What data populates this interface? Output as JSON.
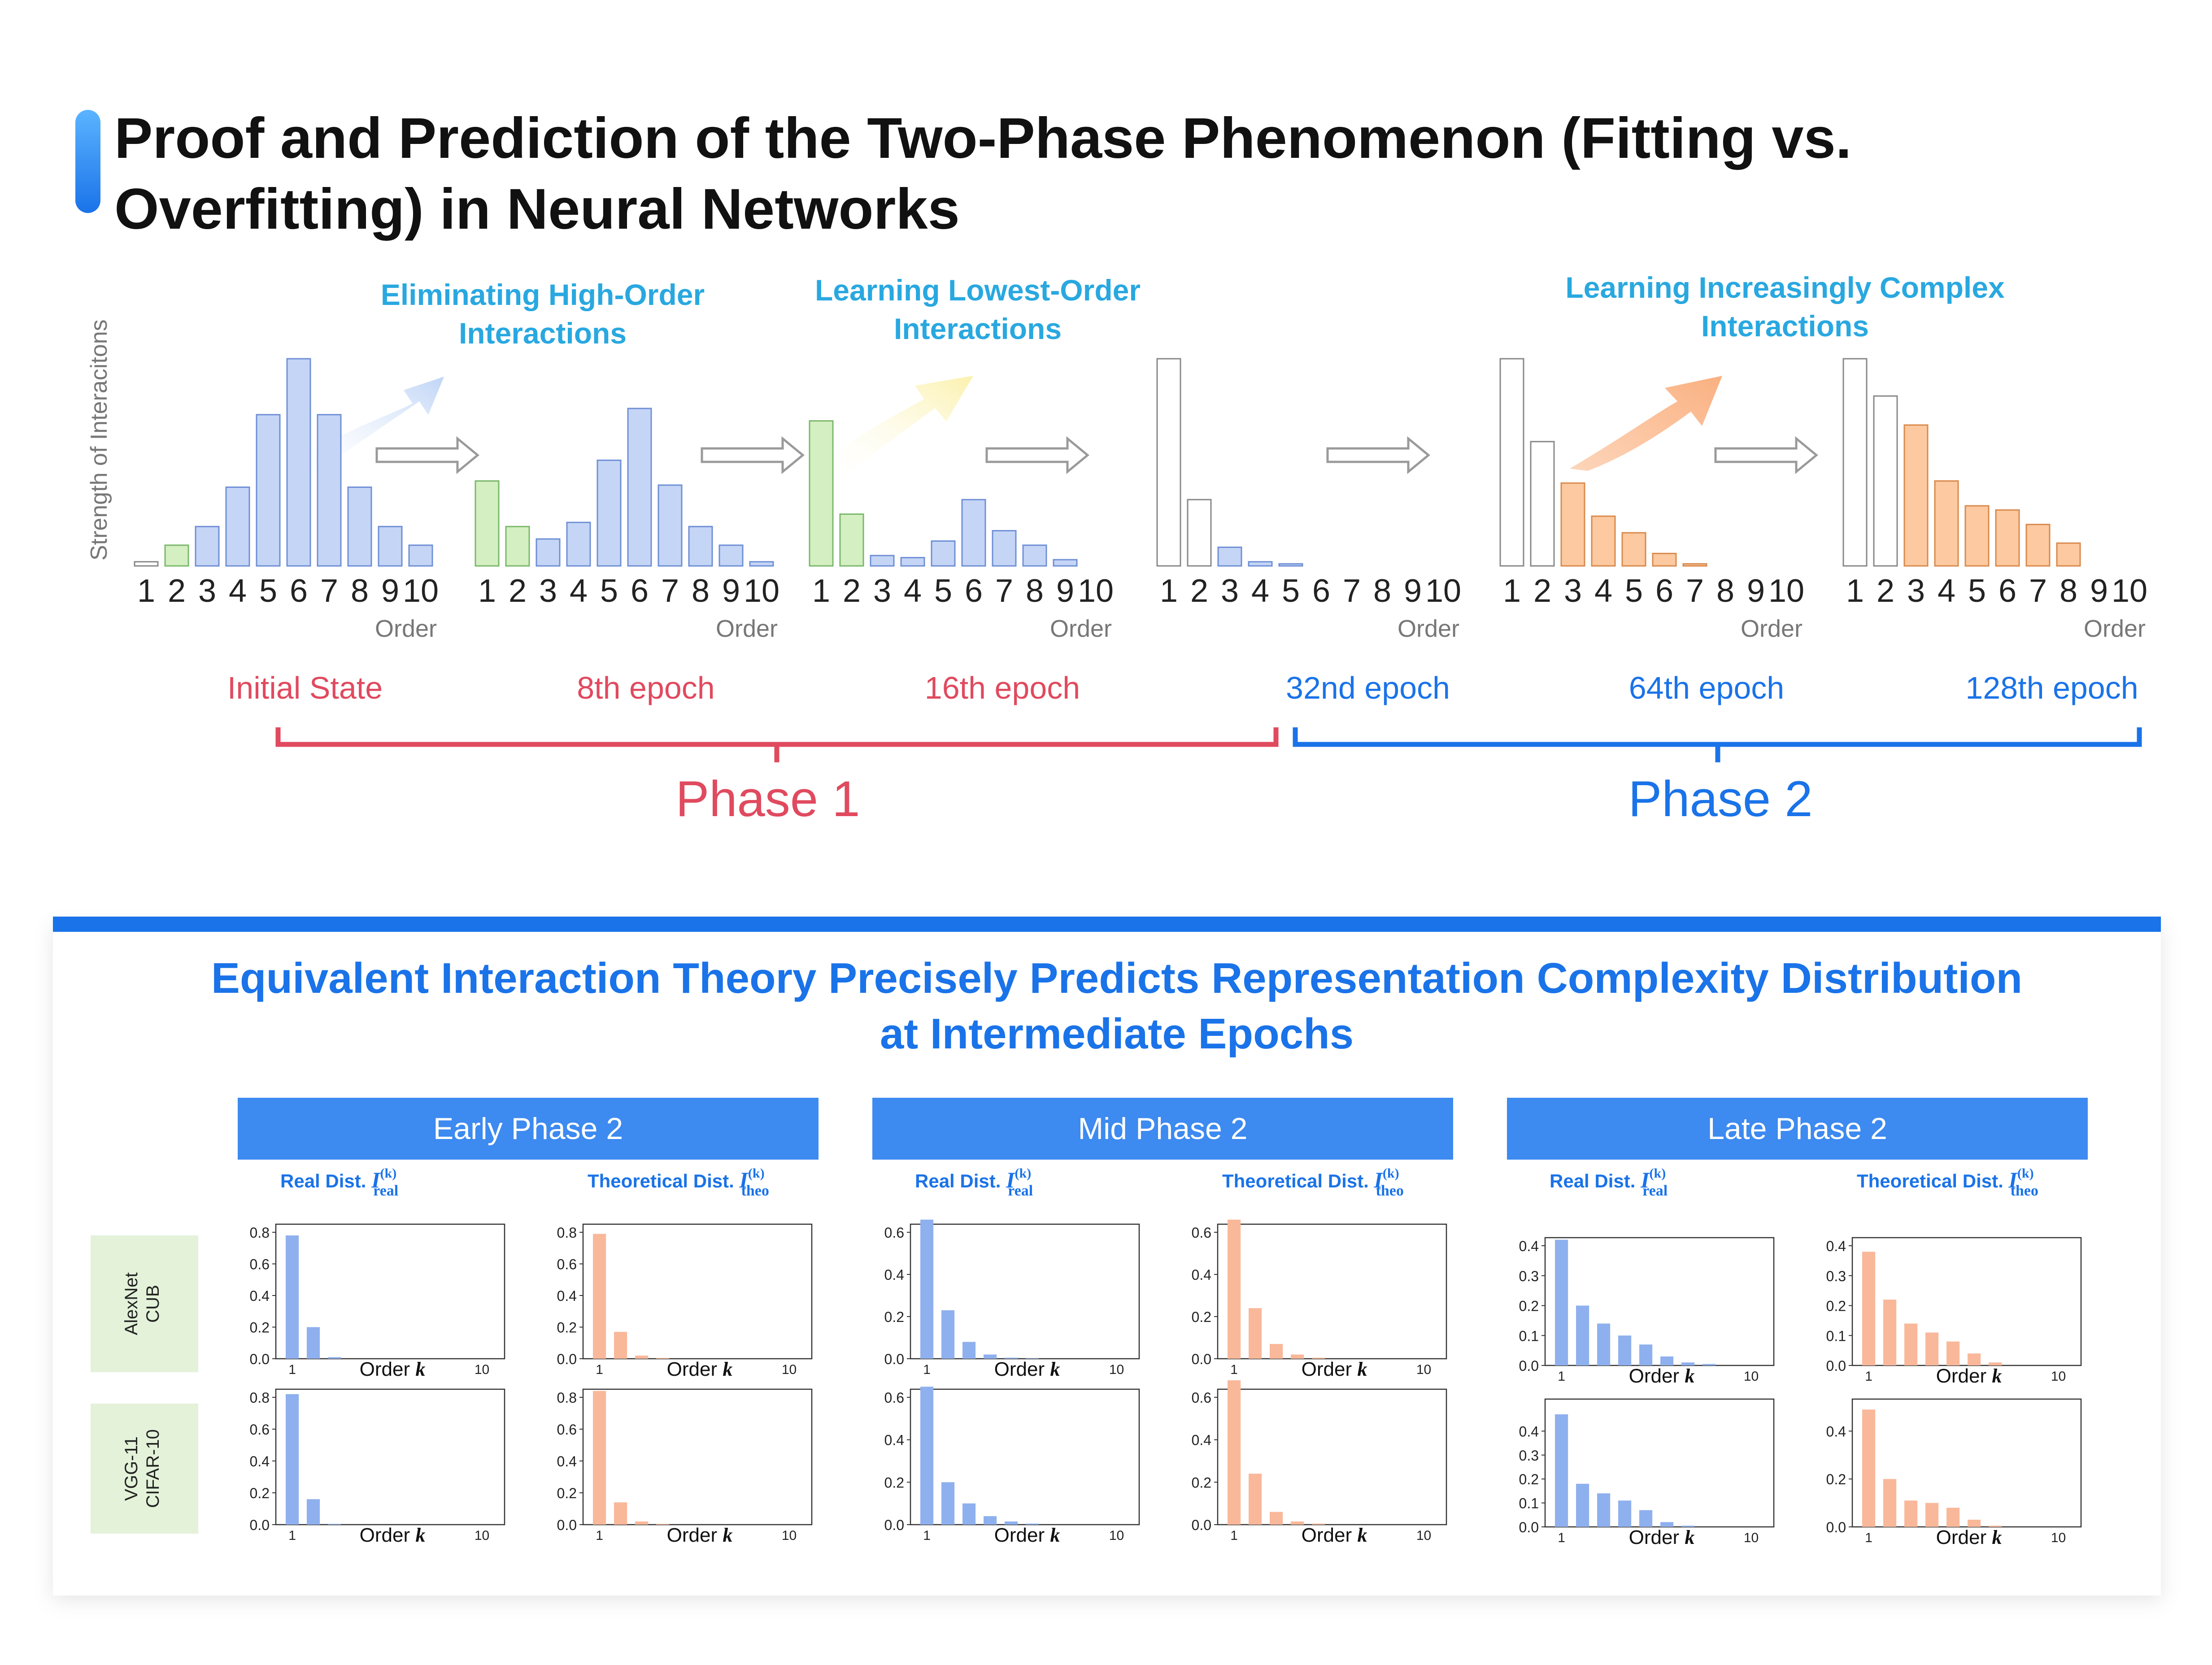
{
  "title": {
    "line1": "Proof and Prediction of the Two-Phase Phenomenon (Fitting vs.",
    "line2": "Overfitting) in Neural Networks"
  },
  "top": {
    "ylabel": "Strength of Interacitons",
    "order_label": "Order",
    "callouts": {
      "eliminating_1": "Eliminating High-Order",
      "eliminating_2": "Interactions",
      "lowest_1": "Learning Lowest-Order",
      "lowest_2": "Interactions",
      "complex_1": "Learning Increasingly Complex",
      "complex_2": "Interactions"
    },
    "phase1_label": "Phase 1",
    "phase2_label": "Phase 2",
    "colors": {
      "phase1": "#e04a5f",
      "phase2": "#1a73e8",
      "callout": "#29a8e0",
      "blue_bar": "#c5d5f5",
      "blue_stroke": "#6f8fd6",
      "green_bar": "#d4efc2",
      "green_stroke": "#7ab86a",
      "orange_bar": "#fcc9a0",
      "orange_stroke": "#d98a4c",
      "white_stroke": "#888888"
    },
    "stages": [
      {
        "label": "Initial State",
        "phase": 1,
        "values": [
          0.02,
          0.1,
          0.19,
          0.38,
          0.73,
          1.0,
          0.73,
          0.38,
          0.19,
          0.1
        ],
        "styles": [
          "w",
          "g",
          "b",
          "b",
          "b",
          "b",
          "b",
          "b",
          "b",
          "b"
        ]
      },
      {
        "label": "8th epoch",
        "phase": 1,
        "values": [
          0.41,
          0.19,
          0.13,
          0.21,
          0.51,
          0.76,
          0.39,
          0.19,
          0.1,
          0.02
        ],
        "styles": [
          "g",
          "g",
          "b",
          "b",
          "b",
          "b",
          "b",
          "b",
          "b",
          "b"
        ]
      },
      {
        "label": "16th epoch",
        "phase": 1,
        "values": [
          0.7,
          0.25,
          0.05,
          0.04,
          0.12,
          0.32,
          0.17,
          0.1,
          0.03,
          0.0
        ],
        "styles": [
          "g",
          "g",
          "b",
          "b",
          "b",
          "b",
          "b",
          "b",
          "b",
          "b"
        ]
      },
      {
        "label": "32nd epoch",
        "phase": 2,
        "values": [
          1.0,
          0.32,
          0.09,
          0.02,
          0.01,
          0,
          0,
          0,
          0,
          0
        ],
        "styles": [
          "w",
          "w",
          "b",
          "b",
          "b",
          "b",
          "b",
          "b",
          "b",
          "b"
        ]
      },
      {
        "label": "64th epoch",
        "phase": 2,
        "values": [
          1.0,
          0.6,
          0.4,
          0.24,
          0.16,
          0.06,
          0.01,
          0,
          0,
          0
        ],
        "styles": [
          "w",
          "w",
          "o",
          "o",
          "o",
          "o",
          "o",
          "o",
          "o",
          "o"
        ]
      },
      {
        "label": "128th epoch",
        "phase": 2,
        "values": [
          1.0,
          0.82,
          0.68,
          0.41,
          0.29,
          0.27,
          0.2,
          0.11,
          0,
          0
        ],
        "styles": [
          "w",
          "w",
          "o",
          "o",
          "o",
          "o",
          "o",
          "o",
          "o",
          "o"
        ]
      }
    ]
  },
  "bottom": {
    "title_line1": "Equivalent Interaction Theory Precisely Predicts Representation Complexity Distribution",
    "title_line2": "at Intermediate Epochs",
    "real_label": "Real Dist. ",
    "theo_label": "Theoretical Dist. ",
    "real_symbol": "I",
    "real_sup": "(k)",
    "real_sub": "real",
    "theo_sup": "(k)",
    "theo_sub": "theo",
    "order_k": "Order ",
    "k": "k",
    "x_start": "1",
    "x_end": "10",
    "rows": [
      {
        "line1": "AlexNet",
        "line2": "CUB"
      },
      {
        "line1": "VGG-11",
        "line2": "CIFAR-10"
      }
    ],
    "columns": [
      {
        "header": "Early Phase 2",
        "charts": [
          {
            "ymax": 0.8,
            "ticks": [
              "0.0",
              "0.2",
              "0.4",
              "0.6",
              "0.8"
            ],
            "real": [
              0.78,
              0.2,
              0.01,
              0,
              0,
              0,
              0,
              0,
              0,
              0
            ],
            "theo": [
              0.79,
              0.17,
              0.02,
              0.005,
              0,
              0,
              0,
              0,
              0,
              0
            ]
          },
          {
            "ymax": 0.8,
            "ticks": [
              "0.0",
              "0.2",
              "0.4",
              "0.6",
              "0.8"
            ],
            "real": [
              0.82,
              0.16,
              0.005,
              0,
              0,
              0,
              0,
              0,
              0,
              0
            ],
            "theo": [
              0.84,
              0.14,
              0.02,
              0.005,
              0,
              0,
              0,
              0,
              0,
              0
            ]
          }
        ]
      },
      {
        "header": "Mid Phase 2",
        "charts": [
          {
            "ymax": 0.6,
            "ticks": [
              "0.0",
              "0.2",
              "0.4",
              "0.6"
            ],
            "real": [
              0.66,
              0.23,
              0.08,
              0.02,
              0.005,
              0.002,
              0,
              0,
              0,
              0
            ],
            "theo": [
              0.66,
              0.24,
              0.07,
              0.02,
              0.005,
              0,
              0,
              0,
              0,
              0
            ]
          },
          {
            "ymax": 0.6,
            "ticks": [
              "0.0",
              "0.2",
              "0.4",
              "0.6"
            ],
            "real": [
              0.65,
              0.2,
              0.1,
              0.04,
              0.015,
              0.005,
              0,
              0,
              0,
              0
            ],
            "theo": [
              0.68,
              0.24,
              0.06,
              0.015,
              0.005,
              0,
              0,
              0,
              0,
              0
            ]
          }
        ]
      },
      {
        "header": "Late Phase 2",
        "charts": [
          {
            "ymax": 0.4,
            "ticks": [
              "0.0",
              "0.1",
              "0.2",
              "0.3",
              "0.4"
            ],
            "real": [
              0.42,
              0.2,
              0.14,
              0.1,
              0.07,
              0.03,
              0.01,
              0.005,
              0,
              0
            ],
            "theo": [
              0.38,
              0.22,
              0.14,
              0.11,
              0.08,
              0.04,
              0.01,
              0,
              0,
              0
            ],
            "theo_ticks": [
              "0.0",
              "0.1",
              "0.2",
              "0.3",
              "0.4"
            ]
          },
          {
            "ymax": 0.5,
            "ticks": [
              "0.0",
              "0.1",
              "0.2",
              "0.3",
              "0.4"
            ],
            "real": [
              0.47,
              0.18,
              0.14,
              0.11,
              0.07,
              0.02,
              0.005,
              0,
              0,
              0
            ],
            "theo": [
              0.49,
              0.2,
              0.11,
              0.1,
              0.08,
              0.03,
              0.005,
              0,
              0,
              0
            ],
            "theo_ticks": [
              "0.0",
              "0.2",
              "0.4"
            ]
          }
        ]
      }
    ],
    "colors": {
      "header_bg": "#3d8af0",
      "header_fg": "#ffffff",
      "label_fg": "#1a73e8",
      "row_bg": "#e3f2d9",
      "real_bar": "#8fb0ee",
      "theo_bar": "#f9b89a",
      "title_fg": "#1a73e8"
    }
  }
}
